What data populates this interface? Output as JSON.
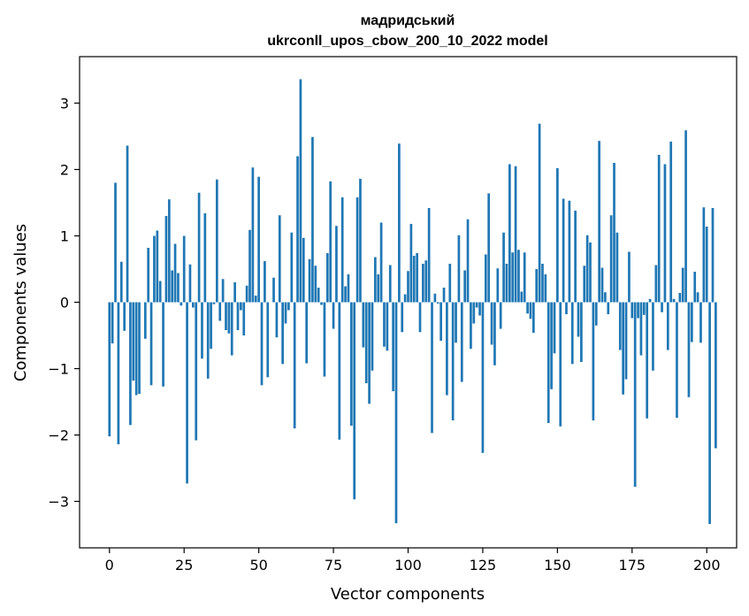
{
  "chart_data": {
    "type": "bar",
    "title_line1": "мадридський",
    "title_line2": "ukrconll_upos_cbow_200_10_2022 model",
    "xlabel": "Vector components",
    "ylabel": "Components values",
    "xlim": [
      -10,
      210
    ],
    "ylim": [
      -3.7,
      3.7
    ],
    "xticks": [
      0,
      25,
      50,
      75,
      100,
      125,
      150,
      175,
      200
    ],
    "xtick_labels": [
      "0",
      "25",
      "50",
      "75",
      "100",
      "125",
      "150",
      "175",
      "200"
    ],
    "yticks": [
      3,
      2,
      1,
      0,
      -1,
      -2,
      -3
    ],
    "ytick_labels": [
      "3",
      "2",
      "1",
      "0",
      "−1",
      "−2",
      "−3"
    ],
    "bar_color": "#1f77b4",
    "grid": false,
    "values": [
      -2.02,
      -0.62,
      1.8,
      -2.14,
      0.61,
      -0.43,
      2.36,
      -1.85,
      -1.18,
      -1.4,
      -1.38,
      0.0,
      -0.55,
      0.82,
      -1.25,
      1.0,
      1.08,
      0.32,
      -1.27,
      1.3,
      1.55,
      0.48,
      0.88,
      0.44,
      -0.05,
      1.0,
      -2.73,
      0.57,
      -0.08,
      -2.08,
      1.65,
      -0.85,
      1.34,
      -1.15,
      -0.7,
      -0.03,
      1.85,
      -0.28,
      0.35,
      -0.42,
      -0.47,
      -0.8,
      0.3,
      -0.42,
      -0.12,
      -0.5,
      0.25,
      1.09,
      2.03,
      0.1,
      1.89,
      -1.25,
      0.62,
      -1.13,
      0.0,
      0.37,
      -0.53,
      1.31,
      -0.93,
      -0.32,
      -0.12,
      1.05,
      -1.9,
      2.2,
      3.36,
      0.97,
      -0.92,
      0.65,
      2.49,
      0.55,
      0.22,
      -0.04,
      -1.12,
      0.74,
      1.82,
      -0.4,
      1.15,
      -2.07,
      1.58,
      0.24,
      0.42,
      -1.86,
      -2.97,
      1.58,
      1.86,
      -0.68,
      -1.22,
      -1.53,
      -1.03,
      0.68,
      0.42,
      1.2,
      -0.67,
      -0.73,
      0.56,
      -1.34,
      -3.33,
      2.39,
      -0.45,
      0.12,
      0.47,
      1.18,
      0.7,
      0.74,
      -0.45,
      0.58,
      0.63,
      1.42,
      -1.97,
      0.13,
      -0.02,
      -0.58,
      0.22,
      -1.4,
      0.58,
      -1.78,
      -0.61,
      1.01,
      -1.2,
      0.48,
      1.25,
      -0.7,
      -0.32,
      -0.08,
      -0.2,
      -2.27,
      0.72,
      1.64,
      -0.64,
      -0.95,
      0.51,
      -0.4,
      1.05,
      0.58,
      2.08,
      0.75,
      2.05,
      0.79,
      0.16,
      0.75,
      -0.17,
      -0.25,
      -0.46,
      0.5,
      2.69,
      0.58,
      0.42,
      -1.82,
      -1.31,
      -0.77,
      2.02,
      -1.87,
      1.56,
      -0.18,
      1.53,
      -0.93,
      1.38,
      -0.52,
      -0.9,
      0.55,
      1.01,
      0.9,
      -1.78,
      -0.35,
      2.43,
      0.52,
      0.15,
      -0.18,
      1.31,
      2.1,
      1.05,
      -0.72,
      -1.39,
      -1.16,
      0.76,
      -0.24,
      -2.78,
      -0.24,
      -0.8,
      -0.19,
      -1.75,
      0.05,
      -1.03,
      0.56,
      2.22,
      -0.15,
      2.08,
      -0.72,
      2.42,
      0.05,
      -1.74,
      0.14,
      0.52,
      2.59,
      -1.43,
      -0.6,
      0.46,
      0.15,
      -0.61,
      1.43,
      1.14,
      -3.34,
      1.42,
      -2.2
    ]
  }
}
